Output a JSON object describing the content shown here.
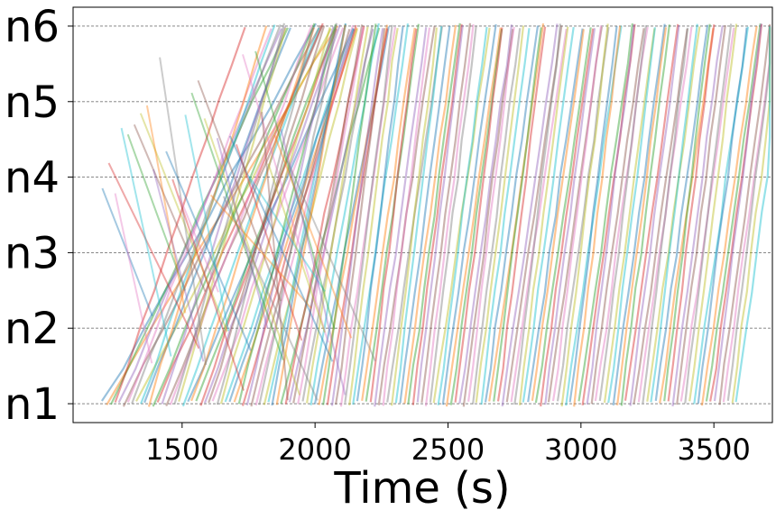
{
  "chart_data": {
    "type": "line",
    "title": "",
    "xlabel": "Time (s)",
    "ylabel": "",
    "xlim": [
      1090,
      3720
    ],
    "ylim": [
      0.75,
      6.25
    ],
    "x_ticks": [
      1500,
      2000,
      2500,
      3000,
      3500
    ],
    "x_tick_labels": [
      "1500",
      "2000",
      "2500",
      "3000",
      "3500"
    ],
    "y_ticks": [
      1,
      2,
      3,
      4,
      5,
      6
    ],
    "y_tick_labels": [
      "n1",
      "n2",
      "n3",
      "n4",
      "n5",
      "n6"
    ],
    "grid": "horizontal dashed",
    "legend": "none",
    "series_description": "time-space trajectories of trains moving between stations n1..n6; each train departs n1 and reaches n6 (and reverse); many semi-transparent colored lines",
    "series": {
      "forward": {
        "start_range": [
          1200,
          3590
        ],
        "headway_s": 16,
        "travel_time_s": [
          150,
          850
        ]
      },
      "reverse": {
        "start_range": [
          1200,
          1900
        ],
        "headway_s": 24,
        "travel_time_s": [
          90,
          400
        ]
      }
    },
    "palette": [
      "#1f77b4",
      "#ff7f0e",
      "#2ca02c",
      "#d62728",
      "#9467bd",
      "#8c564b",
      "#e377c2",
      "#7f7f7f",
      "#bcbd22",
      "#17becf"
    ]
  }
}
